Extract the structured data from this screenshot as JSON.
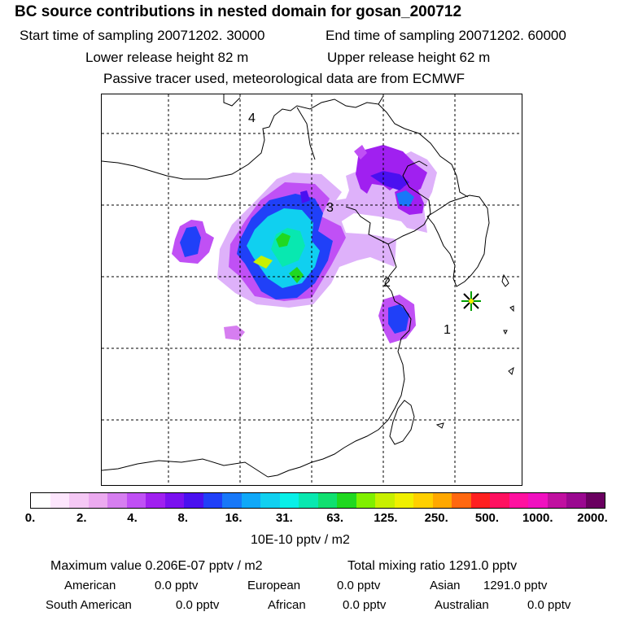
{
  "header": {
    "title": "BC  source contributions in nested domain for gosan_200712",
    "start_label": "Start time of sampling 20071202. 30000",
    "end_label": "End time of sampling 20071202. 60000",
    "lower_label": "Lower release height   82 m",
    "upper_label": "Upper release height   62 m",
    "tracer_note": "Passive tracer used, meteorological data are from ECMWF"
  },
  "map": {
    "region_labels": [
      "1",
      "2",
      "3",
      "4"
    ],
    "marker": "receptor-star-icon"
  },
  "colorbar": {
    "colors": [
      "#ffffff",
      "#fde6fd",
      "#f5c8f5",
      "#ecaaf0",
      "#d67ef0",
      "#c050f5",
      "#a020f0",
      "#7a10f0",
      "#4a10f0",
      "#2040f8",
      "#1878f8",
      "#10a8f8",
      "#10d0f0",
      "#08f0e8",
      "#08e8b0",
      "#10e070",
      "#20d820",
      "#80f000",
      "#c8f000",
      "#f0f000",
      "#ffd000",
      "#ffa800",
      "#ff6810",
      "#ff2020",
      "#ff1060",
      "#ff10a0",
      "#f010c0",
      "#c010a0",
      "#9a0890",
      "#6a0060"
    ],
    "ticks": [
      "0.",
      "2.",
      "4.",
      "8.",
      "16.",
      "31.",
      "63.",
      "125.",
      "250.",
      "500.",
      "1000.",
      "2000."
    ],
    "unit": "10E-10 pptv / m2"
  },
  "summary": {
    "max_value": "Maximum value  0.206E-07 pptv / m2",
    "total_mixing": "Total mixing ratio     1291.0 pptv",
    "rows": [
      [
        {
          "name": "American",
          "value": "0.0 pptv"
        },
        {
          "name": "European",
          "value": "0.0 pptv"
        },
        {
          "name": "Asian",
          "value": "1291.0 pptv"
        }
      ],
      [
        {
          "name": "South American",
          "value": "0.0 pptv"
        },
        {
          "name": "African",
          "value": "0.0 pptv"
        },
        {
          "name": "Australian",
          "value": "0.0 pptv"
        }
      ]
    ]
  }
}
